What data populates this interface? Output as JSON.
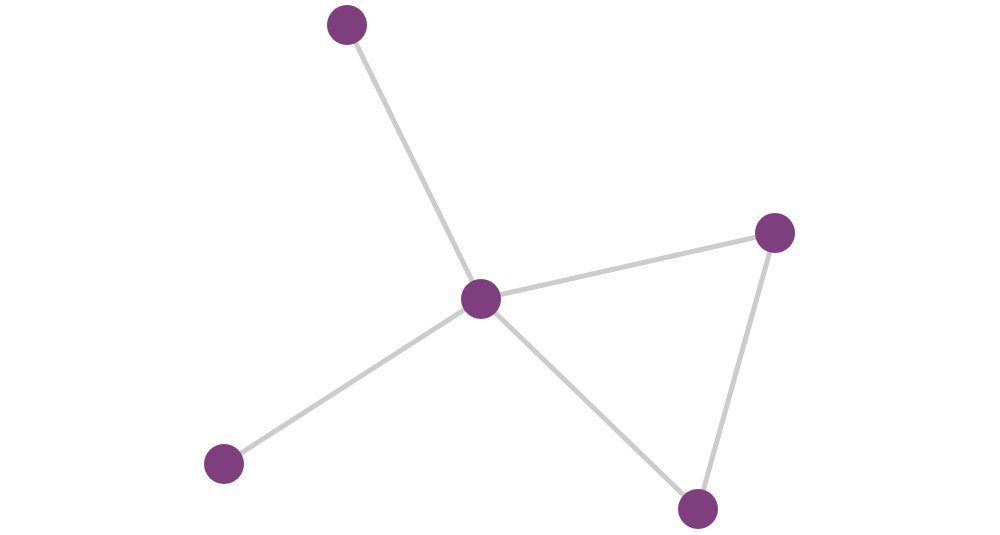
{
  "graph": {
    "node_color": "#7f3f7f",
    "edge_color": "#cccccc",
    "node_count": 5,
    "edges": [
      [
        0,
        1
      ],
      [
        1,
        2
      ],
      [
        1,
        3
      ],
      [
        1,
        4
      ],
      [
        2,
        4
      ]
    ]
  }
}
